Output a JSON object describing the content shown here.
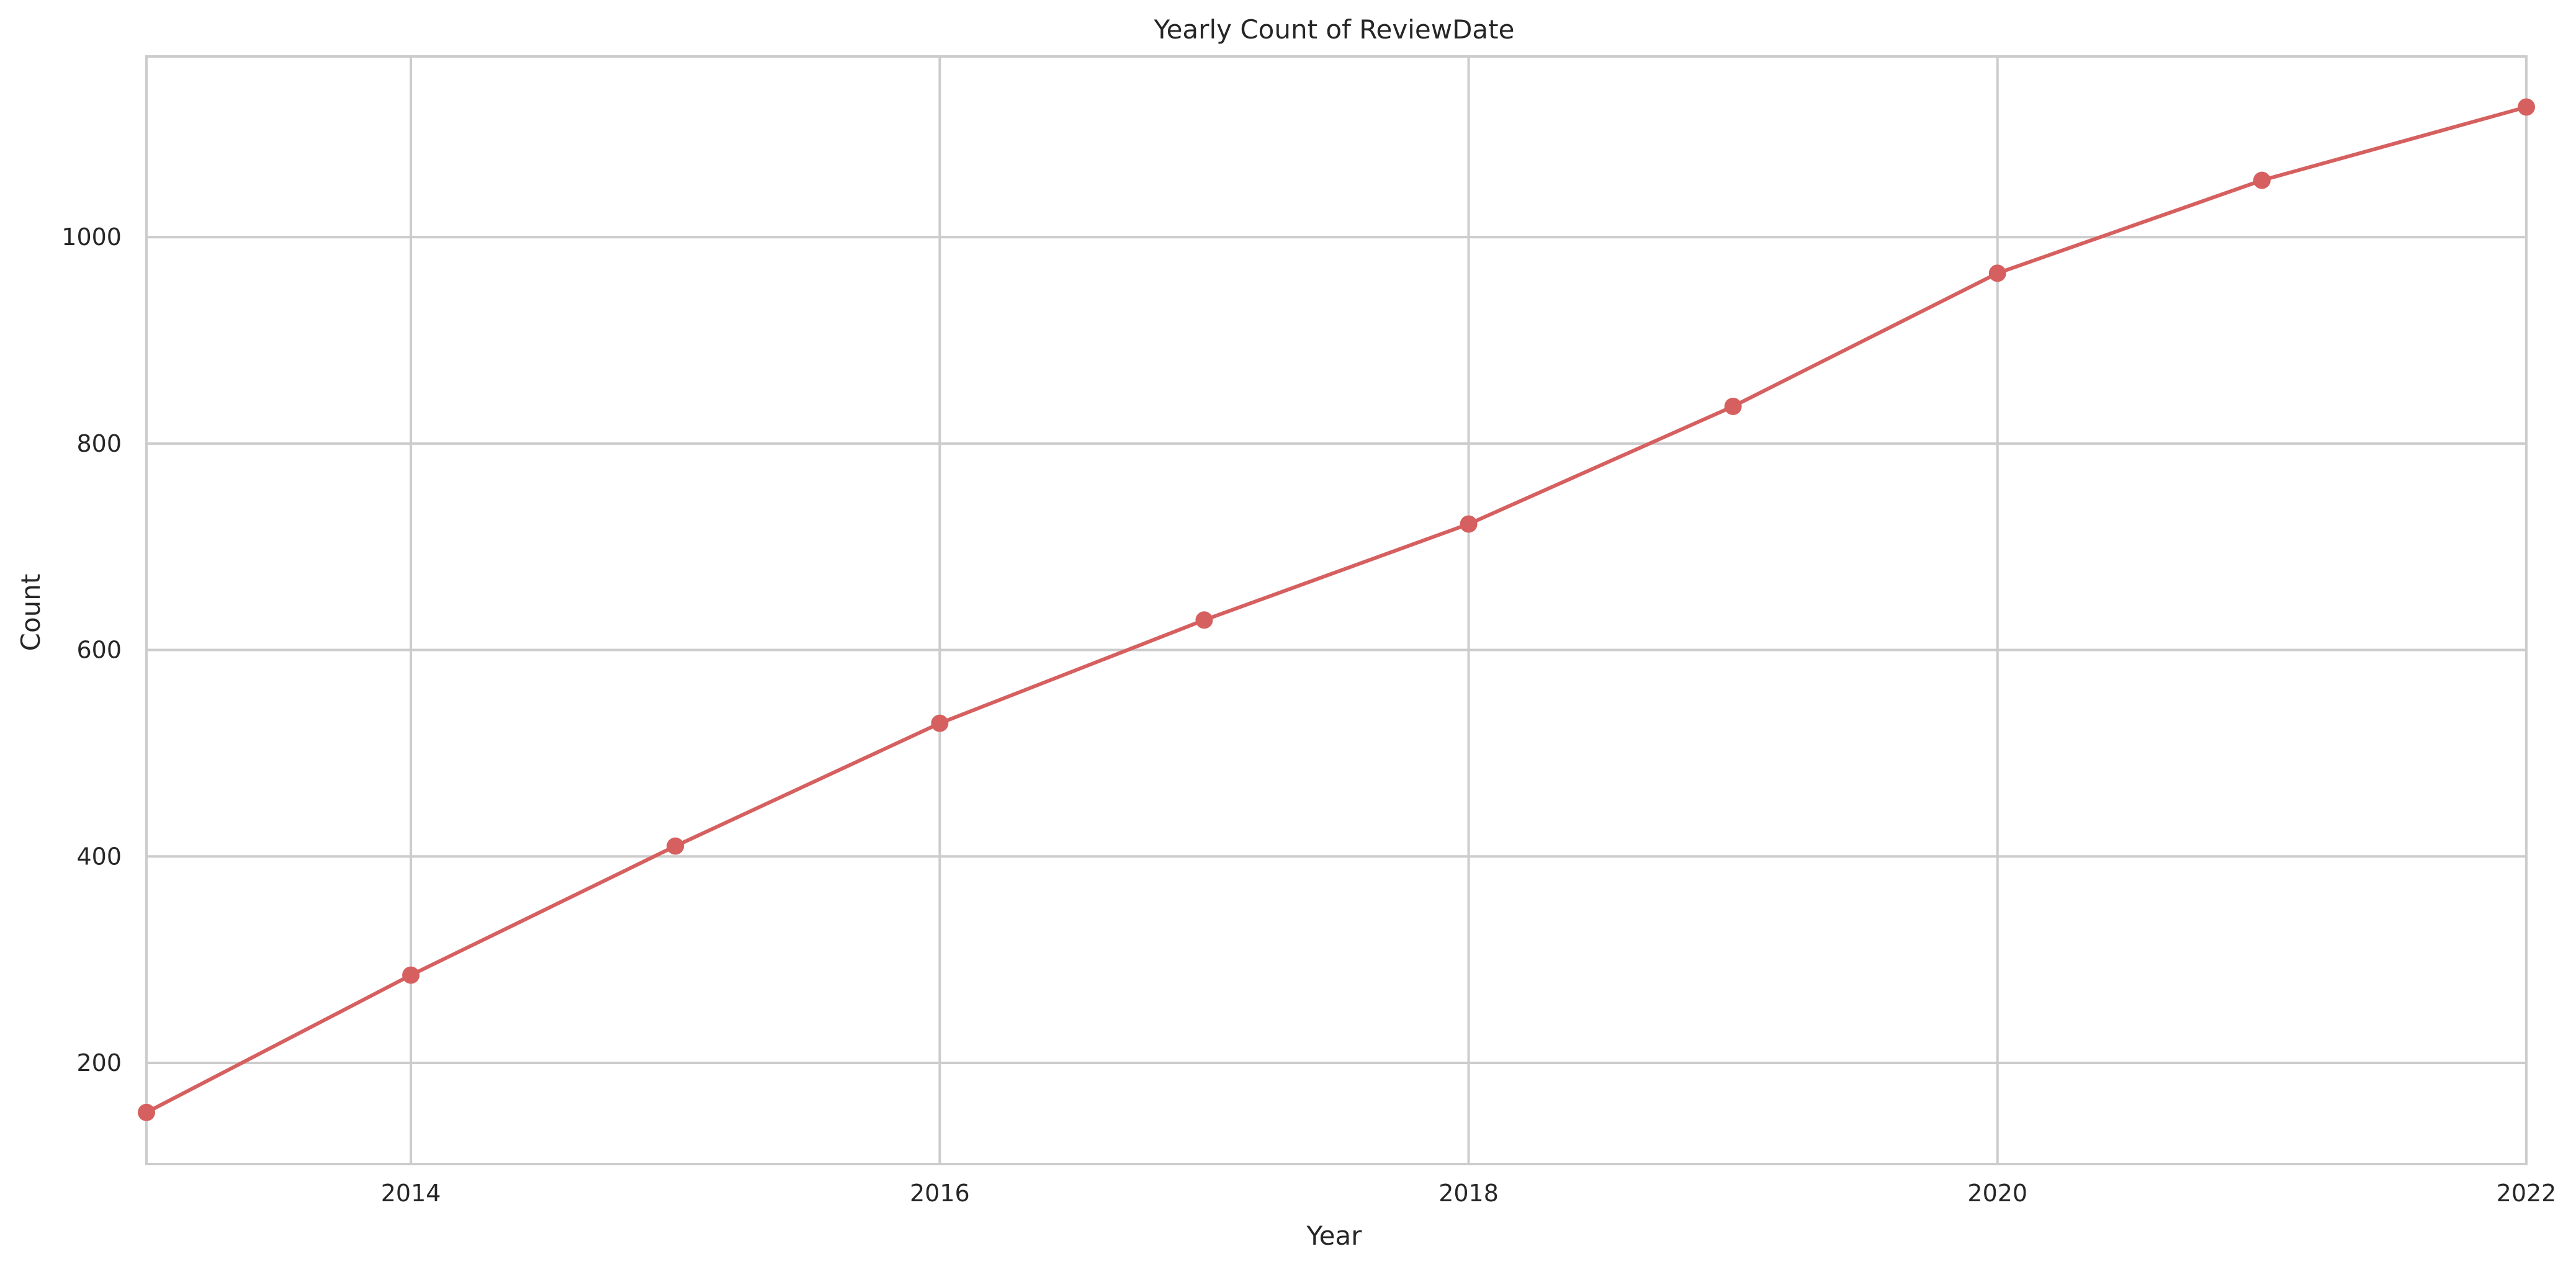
{
  "chart_data": {
    "type": "line",
    "title": "Yearly Count of ReviewDate",
    "xlabel": "Year",
    "ylabel": "Count",
    "x": [
      2013,
      2014,
      2015,
      2016,
      2017,
      2018,
      2019,
      2020,
      2021,
      2022
    ],
    "series": [
      {
        "values": [
          152,
          285,
          410,
          529,
          629,
          722,
          836,
          965,
          1055,
          1126
        ]
      }
    ],
    "xlim": [
      2013,
      2022
    ],
    "ylim": [
      102,
      1175
    ],
    "xticks": [
      2014,
      2016,
      2018,
      2020,
      2022
    ],
    "xtick_labels": [
      "2014",
      "2016",
      "2018",
      "2020",
      "2022"
    ],
    "yticks": [
      200,
      400,
      600,
      800,
      1000
    ],
    "ytick_labels": [
      "200",
      "400",
      "600",
      "800",
      "1000"
    ],
    "grid": true,
    "line_color": "#d65f5f",
    "grid_color": "#cccccc",
    "axes_edge_color": "#cccccc",
    "text_color": "#262626",
    "marker": "circle"
  }
}
